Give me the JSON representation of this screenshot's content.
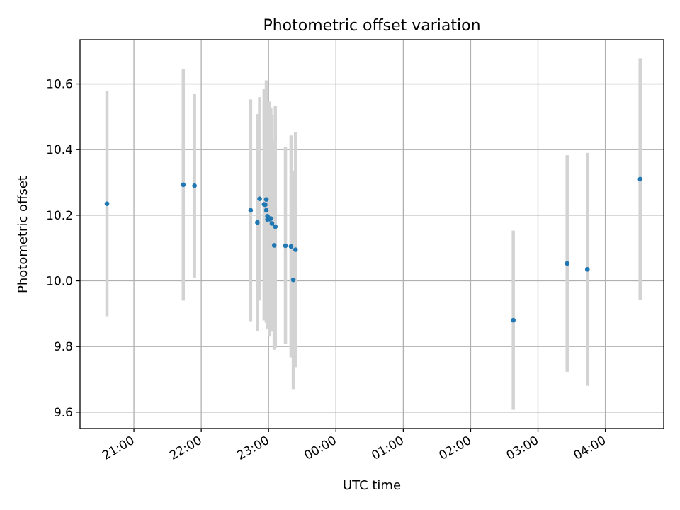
{
  "chart_data": {
    "type": "scatter",
    "title": "Photometric offset variation",
    "xlabel": "UTC time",
    "ylabel": "Photometric offset",
    "grid": true,
    "x_axis": "time",
    "xlim": [
      "20:12",
      "04:52"
    ],
    "ylim": [
      9.55,
      10.735
    ],
    "xticks": [
      "21:00",
      "22:00",
      "23:00",
      "00:00",
      "01:00",
      "02:00",
      "03:00",
      "04:00"
    ],
    "yticks": [
      9.6,
      9.8,
      10.0,
      10.2,
      10.4,
      10.6
    ],
    "points": [
      {
        "x": "20:36",
        "y": 10.235,
        "err": 0.343
      },
      {
        "x": "21:44",
        "y": 10.293,
        "err": 0.353
      },
      {
        "x": "21:54",
        "y": 10.29,
        "err": 0.28
      },
      {
        "x": "22:44",
        "y": 10.215,
        "err": 0.338
      },
      {
        "x": "22:50",
        "y": 10.178,
        "err": 0.33
      },
      {
        "x": "22:52",
        "y": 10.25,
        "err": 0.31
      },
      {
        "x": "22:56",
        "y": 10.233,
        "err": 0.353
      },
      {
        "x": "22:57",
        "y": 10.232,
        "err": 0.353
      },
      {
        "x": "22:58",
        "y": 10.248,
        "err": 0.363
      },
      {
        "x": "22:58",
        "y": 10.215,
        "err": 0.343
      },
      {
        "x": "22:59",
        "y": 10.197,
        "err": 0.34
      },
      {
        "x": "22:59",
        "y": 10.187,
        "err": 0.333
      },
      {
        "x": "23:00",
        "y": 10.19,
        "err": 0.328
      },
      {
        "x": "23:01",
        "y": 10.188,
        "err": 0.358
      },
      {
        "x": "23:02",
        "y": 10.19,
        "err": 0.338
      },
      {
        "x": "23:03",
        "y": 10.175,
        "err": 0.33
      },
      {
        "x": "23:05",
        "y": 10.108,
        "err": 0.318
      },
      {
        "x": "23:06",
        "y": 10.165,
        "err": 0.368
      },
      {
        "x": "23:15",
        "y": 10.107,
        "err": 0.3
      },
      {
        "x": "23:20",
        "y": 10.105,
        "err": 0.338
      },
      {
        "x": "23:22",
        "y": 10.003,
        "err": 0.333
      },
      {
        "x": "23:24",
        "y": 10.095,
        "err": 0.358
      },
      {
        "x": "02:38",
        "y": 9.88,
        "err": 0.273
      },
      {
        "x": "03:26",
        "y": 10.053,
        "err": 0.33
      },
      {
        "x": "03:44",
        "y": 10.035,
        "err": 0.355
      },
      {
        "x": "04:31",
        "y": 10.31,
        "err": 0.368
      }
    ],
    "colors": {
      "point": "#1f77b4",
      "errorbar": "#d3d3d3",
      "grid": "#b0b0b0"
    }
  }
}
